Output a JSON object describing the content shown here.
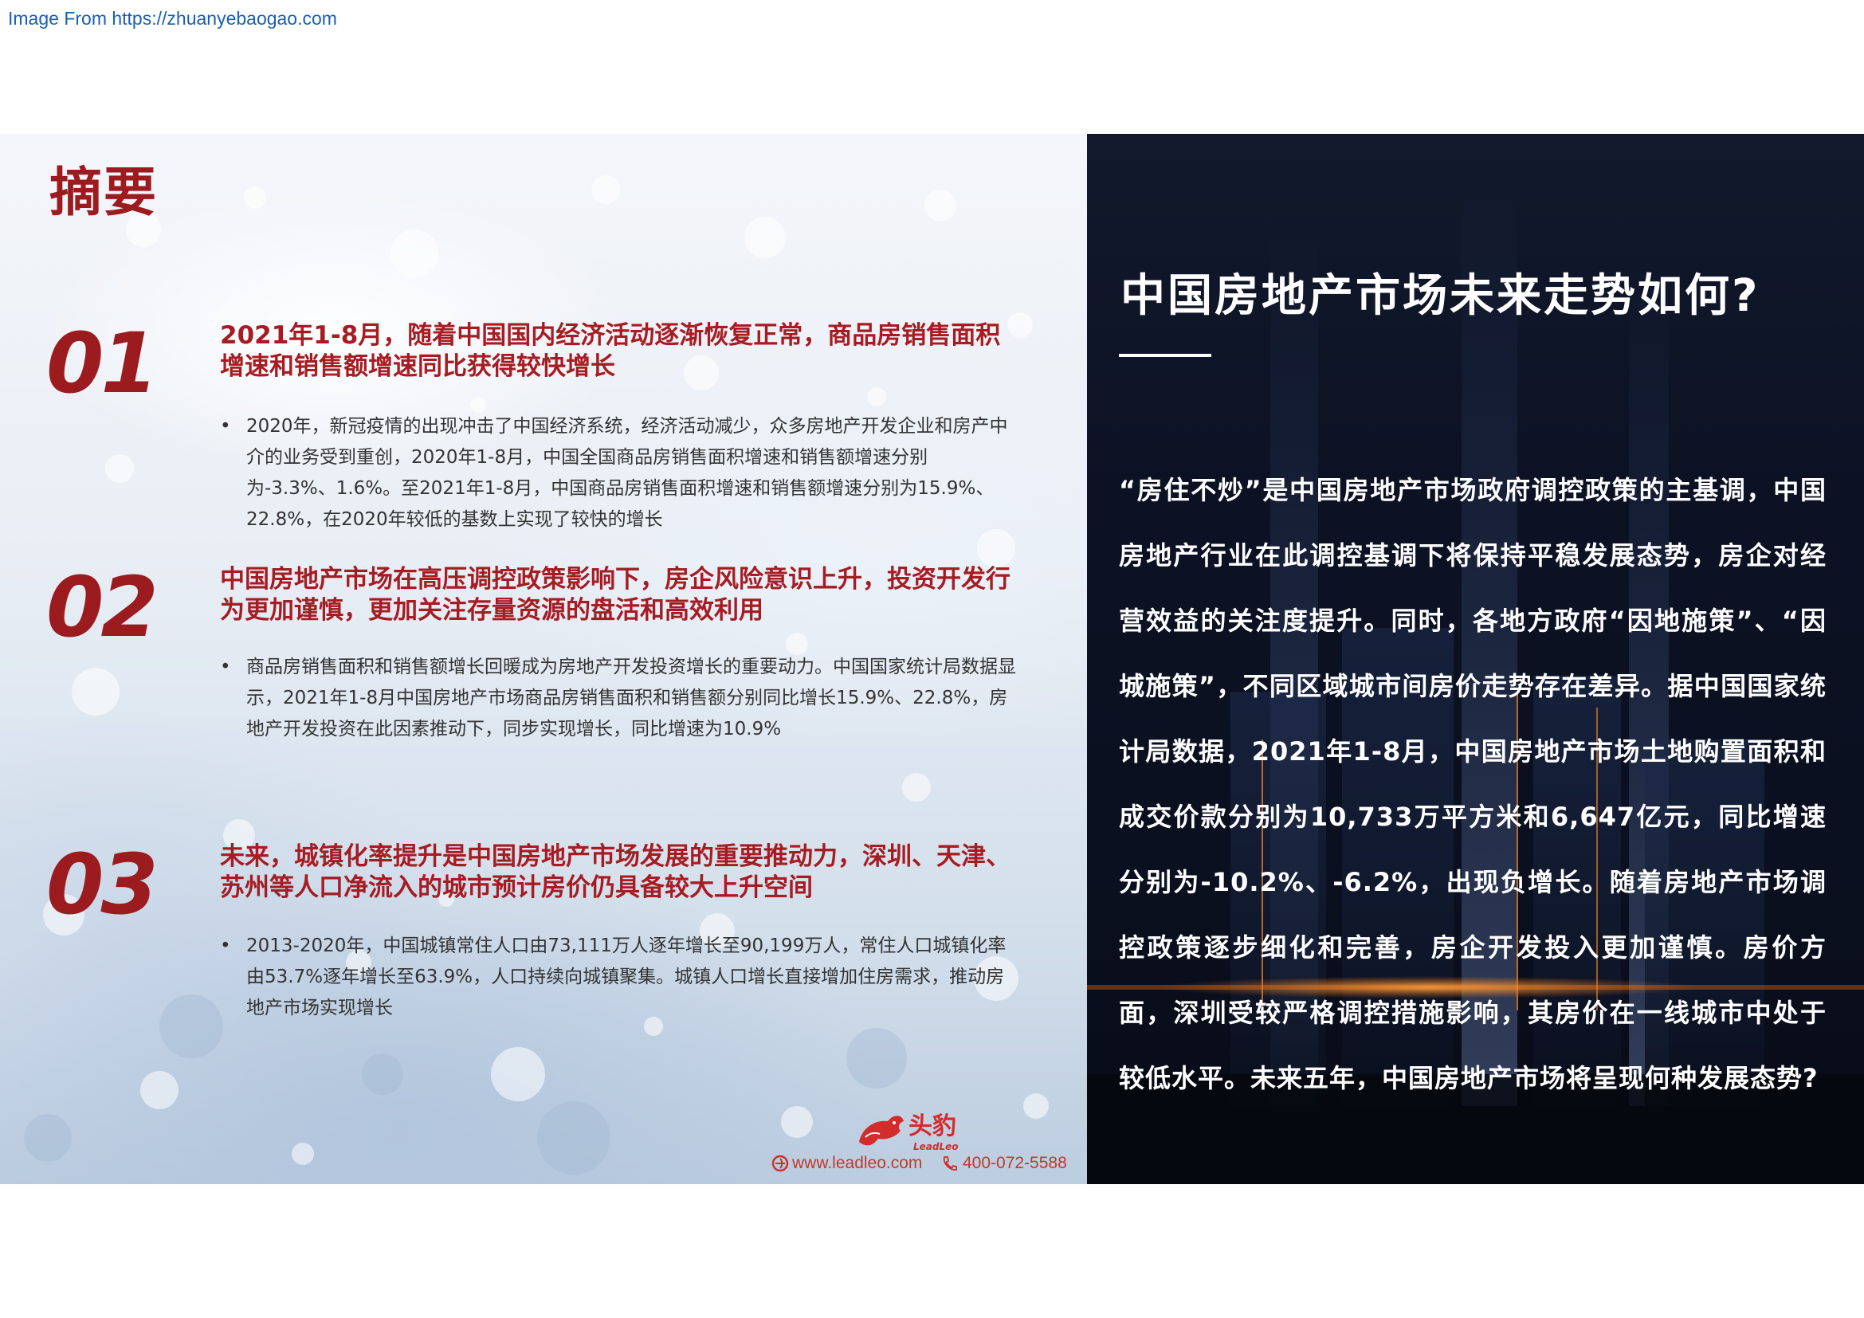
{
  "source_link": "Image From https://zhuanyebaogao.com",
  "summary_title": "摘要",
  "sections": [
    {
      "number": "01",
      "heading": "2021年1-8月，随着中国国内经济活动逐渐恢复正常，商品房销售面积增速和销售额增速同比获得较快增长",
      "bullet": "2020年，新冠疫情的出现冲击了中国经济系统，经济活动减少，众多房地产开发企业和房产中介的业务受到重创，2020年1-8月，中国全国商品房销售面积增速和销售额增速分别为-3.3%、1.6%。至2021年1-8月，中国商品房销售面积增速和销售额增速分别为15.9%、22.8%，在2020年较低的基数上实现了较快的增长"
    },
    {
      "number": "02",
      "heading": "中国房地产市场在高压调控政策影响下，房企风险意识上升，投资开发行为更加谨慎，更加关注存量资源的盘活和高效利用",
      "bullet": "商品房销售面积和销售额增长回暖成为房地产开发投资增长的重要动力。中国国家统计局数据显示，2021年1-8月中国房地产市场商品房销售面积和销售额分别同比增长15.9%、22.8%，房地产开发投资在此因素推动下，同步实现增长，同比增速为10.9%"
    },
    {
      "number": "03",
      "heading": "未来，城镇化率提升是中国房地产市场发展的重要推动力，深圳、天津、苏州等人口净流入的城市预计房价仍具备较大上升空间",
      "bullet": "2013-2020年，中国城镇常住人口由73,111万人逐年增长至90,199万人，常住人口城镇化率由53.7%逐年增长至63.9%，人口持续向城镇聚集。城镇人口增长直接增加住房需求，推动房地产市场实现增长"
    }
  ],
  "brand": {
    "name_cn": "头豹",
    "name_en": "LeadLeo",
    "url": "www.leadleo.com",
    "phone": "400-072-5588",
    "accent_color": "#d42b2b"
  },
  "right_panel": {
    "title": "中国房地产市场未来走势如何?",
    "body": "“房住不炒”是中国房地产市场政府调控政策的主基调，中国房地产行业在此调控基调下将保持平稳发展态势，房企对经营效益的关注度提升。同时，各地方政府“因地施策”、“因城施策”，不同区域城市间房价走势存在差异。据中国国家统计局数据，2021年1-8月，中国房地产市场土地购置面积和成交价款分别为10,733万平方米和6,647亿元，同比增速分别为-10.2%、-6.2%，出现负增长。随着房地产市场调控政策逐步细化和完善，房企开发投入更加谨慎。房价方面，深圳受较严格调控措施影响，其房价在一线城市中处于较低水平。未来五年，中国房地产市场将呈现何种发展态势?"
  },
  "colors": {
    "primary_red": "#9b1b1f",
    "dark_panel": "#0c1224",
    "link_blue": "#1a5fb4"
  }
}
